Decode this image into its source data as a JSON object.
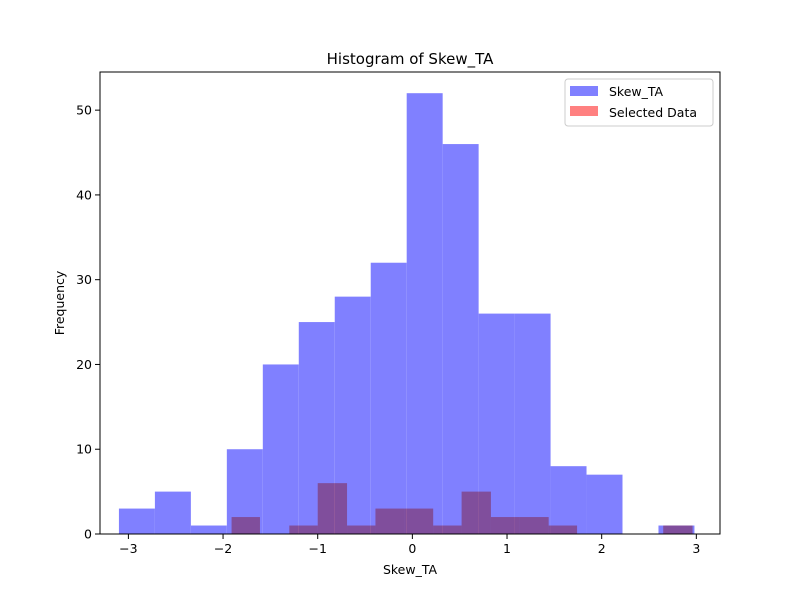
{
  "chart_data": {
    "type": "bar",
    "title": "Histogram of Skew_TA",
    "xlabel": "Skew_TA",
    "ylabel": "Frequency",
    "xlim": [
      -3.3,
      3.25
    ],
    "ylim": [
      0,
      54.5
    ],
    "xticks": [
      -3,
      -2,
      -1,
      0,
      1,
      2,
      3
    ],
    "xtick_labels": [
      "−3",
      "−2",
      "−1",
      "0",
      "1",
      "2",
      "3"
    ],
    "yticks": [
      0,
      10,
      20,
      30,
      40,
      50
    ],
    "ytick_labels": [
      "0",
      "10",
      "20",
      "30",
      "40",
      "50"
    ],
    "grid": false,
    "legend_position": "upper-right",
    "series": [
      {
        "name": "Skew_TA",
        "color": "#8080ff",
        "bins": [
          {
            "x0": -3.1,
            "x1": -2.72,
            "count": 3
          },
          {
            "x0": -2.72,
            "x1": -2.34,
            "count": 5
          },
          {
            "x0": -2.34,
            "x1": -1.96,
            "count": 1
          },
          {
            "x0": -1.96,
            "x1": -1.58,
            "count": 10
          },
          {
            "x0": -1.58,
            "x1": -1.2,
            "count": 20
          },
          {
            "x0": -1.2,
            "x1": -0.82,
            "count": 25
          },
          {
            "x0": -0.82,
            "x1": -0.44,
            "count": 28
          },
          {
            "x0": -0.44,
            "x1": -0.06,
            "count": 32
          },
          {
            "x0": -0.06,
            "x1": 0.32,
            "count": 52
          },
          {
            "x0": 0.32,
            "x1": 0.7,
            "count": 46
          },
          {
            "x0": 0.7,
            "x1": 1.08,
            "count": 26
          },
          {
            "x0": 1.08,
            "x1": 1.46,
            "count": 26
          },
          {
            "x0": 1.46,
            "x1": 1.84,
            "count": 8
          },
          {
            "x0": 1.84,
            "x1": 2.22,
            "count": 7
          },
          {
            "x0": 2.22,
            "x1": 2.6,
            "count": 0
          },
          {
            "x0": 2.6,
            "x1": 2.98,
            "count": 1
          }
        ]
      },
      {
        "name": "Selected Data",
        "color": "#ff8080",
        "bins": [
          {
            "x0": -1.91,
            "x1": -1.61,
            "count": 2
          },
          {
            "x0": -1.61,
            "x1": -1.3,
            "count": 0
          },
          {
            "x0": -1.3,
            "x1": -1.0,
            "count": 1
          },
          {
            "x0": -1.0,
            "x1": -0.69,
            "count": 6
          },
          {
            "x0": -0.69,
            "x1": -0.39,
            "count": 1
          },
          {
            "x0": -0.39,
            "x1": -0.08,
            "count": 3
          },
          {
            "x0": -0.08,
            "x1": 0.22,
            "count": 3
          },
          {
            "x0": 0.22,
            "x1": 0.52,
            "count": 1
          },
          {
            "x0": 0.52,
            "x1": 0.83,
            "count": 5
          },
          {
            "x0": 0.83,
            "x1": 1.13,
            "count": 2
          },
          {
            "x0": 1.13,
            "x1": 1.44,
            "count": 2
          },
          {
            "x0": 1.44,
            "x1": 1.74,
            "count": 1
          },
          {
            "x0": 1.74,
            "x1": 2.04,
            "count": 0
          },
          {
            "x0": 2.04,
            "x1": 2.35,
            "count": 0
          },
          {
            "x0": 2.35,
            "x1": 2.65,
            "count": 0
          },
          {
            "x0": 2.65,
            "x1": 2.96,
            "count": 1
          }
        ]
      }
    ]
  }
}
